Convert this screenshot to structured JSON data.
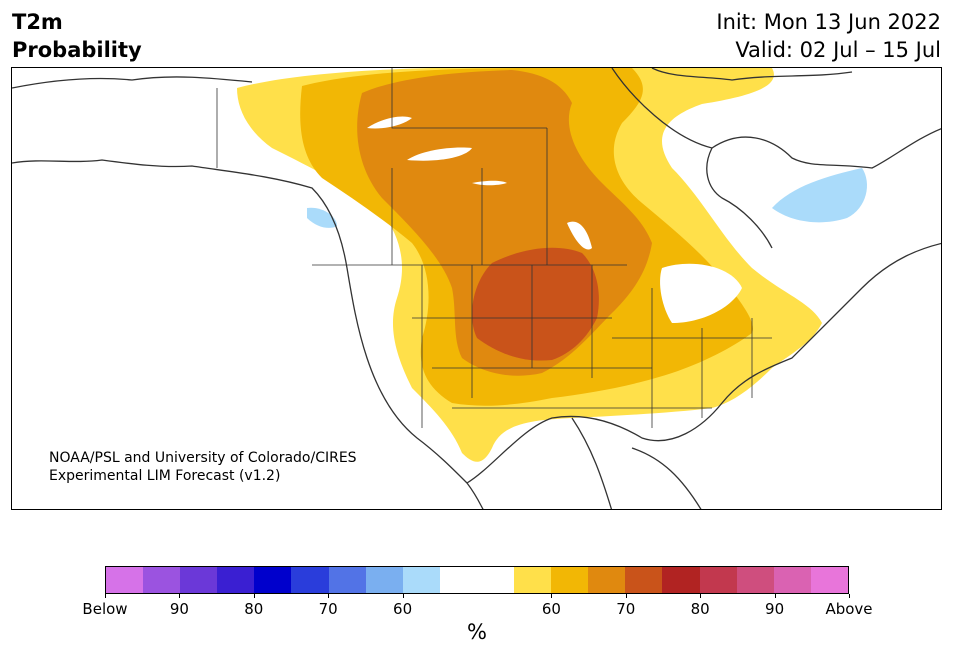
{
  "header": {
    "title_line1": "T2m",
    "title_line2": "Probability",
    "init": "Init: Mon 13 Jun 2022",
    "valid": "Valid: 02 Jul – 15 Jul"
  },
  "map": {
    "region": "North America",
    "credit_line1": "NOAA/PSL and University of Colorado/CIRES",
    "credit_line2": "Experimental LIM Forecast (v1.2)"
  },
  "colorbar": {
    "unit": "%",
    "colors": [
      "#d672e8",
      "#9b53e0",
      "#6b38d8",
      "#3a1fd2",
      "#0000cc",
      "#2a3ddb",
      "#5273e6",
      "#7aaff0",
      "#aadbfa",
      "#ffffff",
      "#ffffff",
      "#ffe04a",
      "#f2b705",
      "#e0890f",
      "#c9531a",
      "#b12322",
      "#c2384e",
      "#cf4e7e",
      "#da62b2",
      "#e875da"
    ],
    "tick_labels": [
      "Below",
      "90",
      "80",
      "70",
      "60",
      "60",
      "70",
      "80",
      "90",
      "Above"
    ]
  },
  "legend_colors": {
    "above_60": "#ffe04a",
    "above_65": "#f2b705",
    "above_70": "#e0890f",
    "above_75": "#c9531a",
    "below_60": "#aadbfa"
  }
}
